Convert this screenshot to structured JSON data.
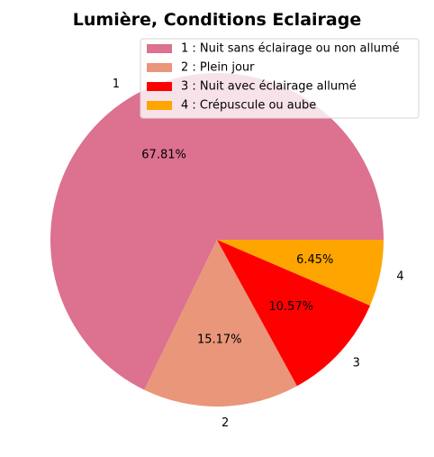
{
  "chart_data": {
    "type": "pie",
    "title": "Lumière, Conditions Eclairage",
    "slices": [
      {
        "category": "1",
        "legend": "1 : Nuit sans éclairage ou non allumé",
        "percent": 67.81,
        "label": "67.81%",
        "color": "#dc7190"
      },
      {
        "category": "2",
        "legend": "2 : Plein jour",
        "percent": 15.17,
        "label": "15.17%",
        "color": "#e9967a"
      },
      {
        "category": "3",
        "legend": "3 : Nuit avec éclairage allumé",
        "percent": 10.57,
        "label": "10.57%",
        "color": "#ff0000"
      },
      {
        "category": "4",
        "legend": "4 : Crépuscule ou aube",
        "percent": 6.45,
        "label": "6.45%",
        "color": "#ffa500"
      }
    ],
    "start_angle_deg": 0,
    "direction": "counterclockwise",
    "legend_position": "upper-right"
  }
}
